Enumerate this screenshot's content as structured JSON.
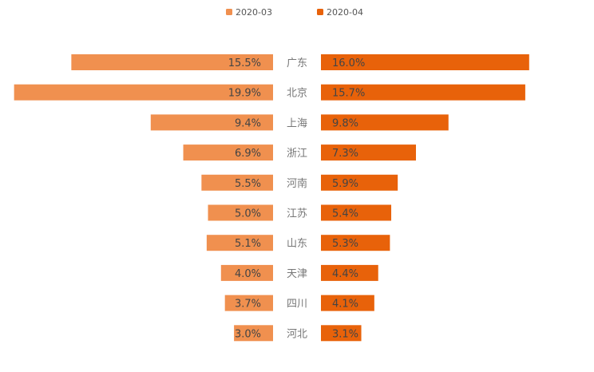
{
  "chart_data": {
    "type": "bar",
    "layout": "diverging-horizontal",
    "categories": [
      "广东",
      "北京",
      "上海",
      "浙江",
      "河南",
      "江苏",
      "山东",
      "天津",
      "四川",
      "河北"
    ],
    "series": [
      {
        "name": "2020-03",
        "values": [
          15.5,
          19.9,
          9.4,
          6.9,
          5.5,
          5.0,
          5.1,
          4.0,
          3.7,
          3.0
        ],
        "labels": [
          "15.5%",
          "19.9%",
          "9.4%",
          "6.9%",
          "5.5%",
          "5.0%",
          "5.1%",
          "4.0%",
          "3.7%",
          "3.0%"
        ],
        "color": "#f0904f",
        "side": "left"
      },
      {
        "name": "2020-04",
        "values": [
          16.0,
          15.7,
          9.8,
          7.3,
          5.9,
          5.4,
          5.3,
          4.4,
          4.1,
          3.1
        ],
        "labels": [
          "16.0%",
          "15.7%",
          "9.8%",
          "7.3%",
          "5.9%",
          "5.4%",
          "5.3%",
          "4.4%",
          "4.1%",
          "3.1%"
        ],
        "color": "#e8620a",
        "side": "right"
      }
    ],
    "value_unit": "%",
    "legend_position": "top-center",
    "grid": false
  }
}
